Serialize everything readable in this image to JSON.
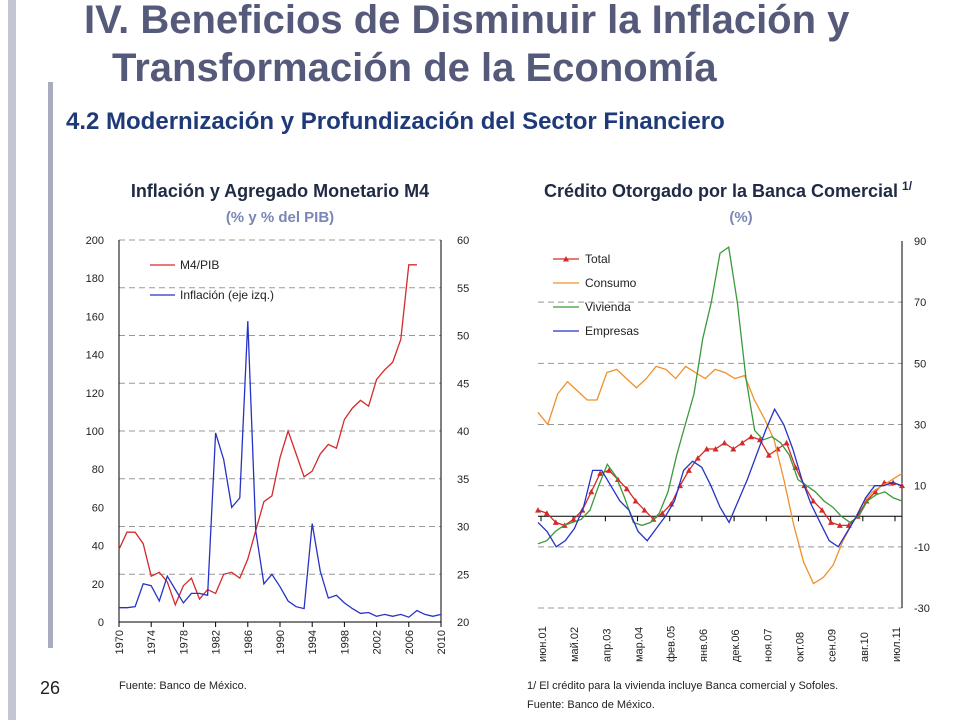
{
  "slide": {
    "title_line1": "IV. Beneficios de Disminuir la Inflación y",
    "title_line2": "Transformación de la Economía",
    "subtitle": "4.2 Modernización y Profundización del Sector Financiero",
    "page_number": "26"
  },
  "colors": {
    "red": "#d42a2a",
    "blue": "#2733c4",
    "green": "#3a9a3a",
    "orange": "#f0902a",
    "grid": "#999999"
  },
  "chart_data": [
    {
      "type": "line",
      "title": "Inflación y Agregado Monetario M4",
      "subtitle": "(% y % del PIB)",
      "source": "Fuente: Banco de México.",
      "x": [
        1970,
        1971,
        1972,
        1973,
        1974,
        1975,
        1976,
        1977,
        1978,
        1979,
        1980,
        1981,
        1982,
        1983,
        1984,
        1985,
        1986,
        1987,
        1988,
        1989,
        1990,
        1991,
        1992,
        1993,
        1994,
        1995,
        1996,
        1997,
        1998,
        1999,
        2000,
        2001,
        2002,
        2003,
        2004,
        2005,
        2006,
        2007,
        2008,
        2009,
        2010
      ],
      "x_ticks": [
        "1970",
        "1974",
        "1978",
        "1982",
        "1986",
        "1990",
        "1994",
        "1998",
        "2002",
        "2006",
        "2010"
      ],
      "y_left_ticks": [
        "0",
        "20",
        "40",
        "60",
        "80",
        "100",
        "120",
        "140",
        "160",
        "180",
        "200"
      ],
      "y_right_ticks": [
        "20",
        "25",
        "30",
        "35",
        "40",
        "45",
        "50",
        "55",
        "60"
      ],
      "ylim_left": [
        0,
        200
      ],
      "ylim_right": [
        20,
        60
      ],
      "series": [
        {
          "name": "M4/PIB",
          "axis": "left",
          "values": [
            38,
            47,
            47,
            41,
            24,
            26,
            21,
            9,
            19,
            23,
            12,
            17,
            15,
            25,
            26,
            23,
            33,
            48,
            63,
            66,
            86,
            100,
            88,
            76,
            79,
            88,
            93,
            91,
            106,
            112,
            116,
            113,
            127,
            132,
            136,
            148,
            187,
            187,
            null,
            null,
            null
          ]
        },
        {
          "name": "Inflación (eje izq.)",
          "axis": "right",
          "values": [
            21.5,
            21.5,
            21.6,
            24,
            23.8,
            22.2,
            24.8,
            23.4,
            22,
            23,
            23,
            22.8,
            39.8,
            37,
            32,
            33,
            51.5,
            29.5,
            24,
            25,
            23.7,
            22.2,
            21.6,
            21.4,
            30.3,
            25.3,
            22.5,
            22.8,
            22,
            21.4,
            20.9,
            21,
            20.6,
            20.8,
            20.6,
            20.8,
            20.5,
            21.2,
            20.8,
            20.6,
            20.8
          ]
        }
      ]
    },
    {
      "type": "line",
      "title": "Crédito Otorgado por la Banca Comercial",
      "title_sup": "1/",
      "subtitle": "(%)",
      "footnote": "1/ El crédito para la vivienda incluye Banca comercial y Sofoles.",
      "source": "Fuente: Banco de México.",
      "x_ticks": [
        "июн.01",
        "май.02",
        "апр.03",
        "мар.04",
        "фев.05",
        "янв.06",
        "дек.06",
        "ноя.07",
        "окт.08",
        "сен.09",
        "авг.10",
        "июл.11"
      ],
      "y_right_ticks": [
        "90",
        "70",
        "50",
        "30",
        "10",
        "-10",
        "-30"
      ],
      "ylim": [
        -30,
        90
      ],
      "series": [
        {
          "name": "Total",
          "marker": "triangle",
          "values": [
            2,
            1,
            -2,
            -3,
            -1,
            2,
            8,
            14,
            15,
            12,
            9,
            5,
            2,
            -1,
            1,
            4,
            10,
            15,
            19,
            22,
            22,
            24,
            22,
            24,
            26,
            25,
            20,
            22,
            24,
            16,
            10,
            5,
            2,
            -2,
            -3,
            -3,
            0,
            5,
            8,
            11,
            11,
            10
          ]
        },
        {
          "name": "Consumo",
          "values": [
            34,
            30,
            40,
            44,
            41,
            38,
            38,
            47,
            48,
            45,
            42,
            45,
            49,
            48,
            45,
            49,
            47,
            45,
            48,
            47,
            45,
            46,
            38,
            32,
            25,
            12,
            -3,
            -15,
            -22,
            -20,
            -16,
            -8,
            -2,
            4,
            8,
            10,
            12,
            14
          ]
        },
        {
          "name": "Vivienda",
          "values": [
            -9,
            -8,
            -5,
            -3,
            -2,
            -1,
            2,
            10,
            17,
            13,
            6,
            -2,
            -3,
            -2,
            1,
            8,
            20,
            30,
            40,
            58,
            70,
            86,
            88,
            70,
            45,
            28,
            25,
            26,
            24,
            20,
            12,
            10,
            8,
            5,
            3,
            0,
            -2,
            0,
            5,
            7,
            8,
            6,
            5
          ]
        },
        {
          "name": "Empresas",
          "values": [
            -2,
            -5,
            -10,
            -8,
            -4,
            3,
            15,
            15,
            10,
            5,
            2,
            -5,
            -8,
            -4,
            0,
            5,
            15,
            18,
            16,
            10,
            3,
            -2,
            5,
            12,
            20,
            28,
            35,
            30,
            22,
            12,
            4,
            -2,
            -8,
            -10,
            -5,
            0,
            6,
            10,
            10,
            11,
            10
          ]
        }
      ]
    }
  ]
}
